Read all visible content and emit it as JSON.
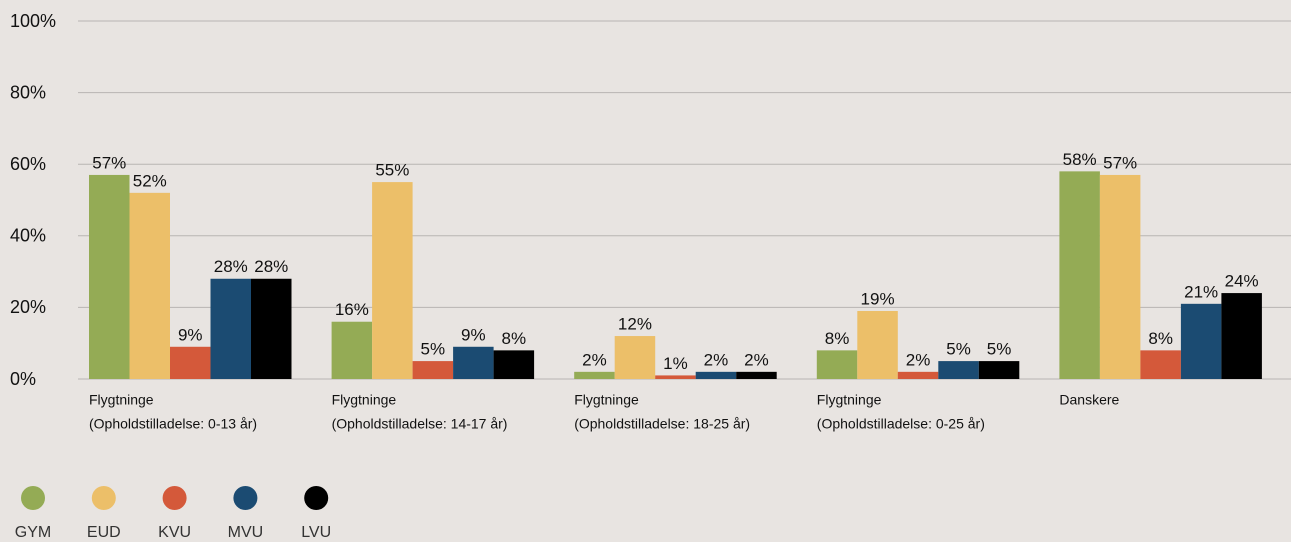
{
  "chart_data": {
    "type": "bar",
    "categories": [
      [
        "Flygtninge",
        "(Opholdstilladelse: 0-13 år)"
      ],
      [
        "Flygtninge",
        "(Opholdstilladelse: 14-17 år)"
      ],
      [
        "Flygtninge",
        "(Opholdstilladelse: 18-25 år)"
      ],
      [
        "Flygtninge",
        "(Opholdstilladelse: 0-25 år)"
      ],
      [
        "Danskere"
      ]
    ],
    "series": [
      {
        "name": "GYM",
        "color": "#94ab55",
        "values": [
          57,
          16,
          2,
          8,
          58
        ],
        "value_labels": [
          "57%",
          "16%",
          "2%",
          "8%",
          "58%"
        ]
      },
      {
        "name": "EUD",
        "color": "#ecbf69",
        "values": [
          52,
          55,
          12,
          19,
          57
        ],
        "value_labels": [
          "52%",
          "55%",
          "12%",
          "19%",
          "57%"
        ]
      },
      {
        "name": "KVU",
        "color": "#d4593a",
        "values": [
          9,
          5,
          1,
          2,
          8
        ],
        "value_labels": [
          "9%",
          "5%",
          "1%",
          "2%",
          "8%"
        ]
      },
      {
        "name": "MVU",
        "color": "#1b4b72",
        "values": [
          28,
          9,
          2,
          5,
          21
        ],
        "value_labels": [
          "28%",
          "9%",
          "2%",
          "5%",
          "21%"
        ]
      },
      {
        "name": "LVU",
        "color": "#000000",
        "values": [
          28,
          8,
          2,
          5,
          24
        ],
        "value_labels": [
          "28%",
          "8%",
          "2%",
          "5%",
          "24%"
        ]
      }
    ],
    "ylim": [
      0,
      100
    ],
    "yticks": [
      {
        "value": 0,
        "label": "0%"
      },
      {
        "value": 20,
        "label": "20%"
      },
      {
        "value": 40,
        "label": "40%"
      },
      {
        "value": 60,
        "label": "60%"
      },
      {
        "value": 80,
        "label": "80%"
      },
      {
        "value": 100,
        "label": "100%"
      }
    ],
    "grid": true,
    "legend": "bottom-left"
  }
}
